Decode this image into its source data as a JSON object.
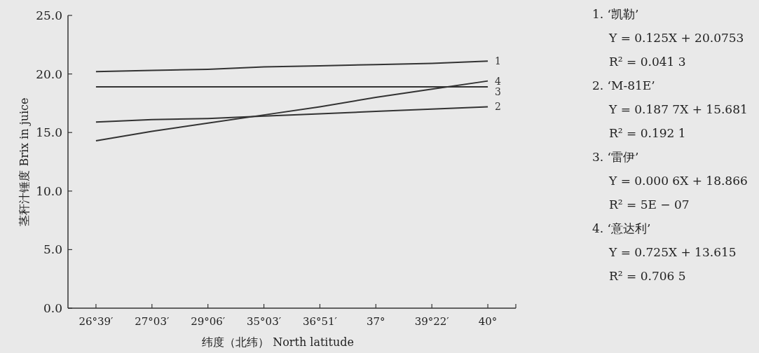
{
  "chart_data": {
    "type": "line",
    "xlabel": "纬度（北纬）  North latitude",
    "ylabel": "茎秆汁锤度  Brix in juice",
    "categories": [
      "26°39′",
      "27°03′",
      "29°06′",
      "35°03′",
      "36°51′",
      "37°",
      "39°22′",
      "40°"
    ],
    "series": [
      {
        "name": "1",
        "color": "#333333",
        "values": [
          20.2,
          20.3,
          20.4,
          20.6,
          20.7,
          20.8,
          20.9,
          21.1
        ]
      },
      {
        "name": "2",
        "color": "#333333",
        "values": [
          15.9,
          16.1,
          16.2,
          16.4,
          16.6,
          16.8,
          17.0,
          17.2
        ]
      },
      {
        "name": "3",
        "color": "#333333",
        "values": [
          18.9,
          18.9,
          18.9,
          18.9,
          18.9,
          18.9,
          18.9,
          18.9
        ]
      },
      {
        "name": "4",
        "color": "#333333",
        "values": [
          14.3,
          15.1,
          15.8,
          16.5,
          17.2,
          18.0,
          18.7,
          19.4
        ]
      }
    ],
    "ylim": [
      0,
      25
    ],
    "yticks": [
      {
        "value": 0,
        "label": "0.0"
      },
      {
        "value": 5,
        "label": "5.0"
      },
      {
        "value": 10,
        "label": "10.0"
      },
      {
        "value": 15,
        "label": "15.0"
      },
      {
        "value": 20,
        "label": "20.0"
      },
      {
        "value": 25,
        "label": "25.0"
      }
    ],
    "marker": "none",
    "line_style": "solid",
    "annotations": [
      "1. ‘凯勒’",
      "Y = 0.125X + 20.0753",
      "R² = 0.041 3",
      "2. ‘M-81E’",
      "Y = 0.187 7X + 15.681",
      "R² = 0.192 1",
      "3. ‘雷伊’",
      "Y = 0.000 6X + 18.866",
      "R² = 5E − 07",
      "4. ‘意达利’",
      "Y = 0.725X + 13.615",
      "R² = 0.706 5"
    ]
  }
}
